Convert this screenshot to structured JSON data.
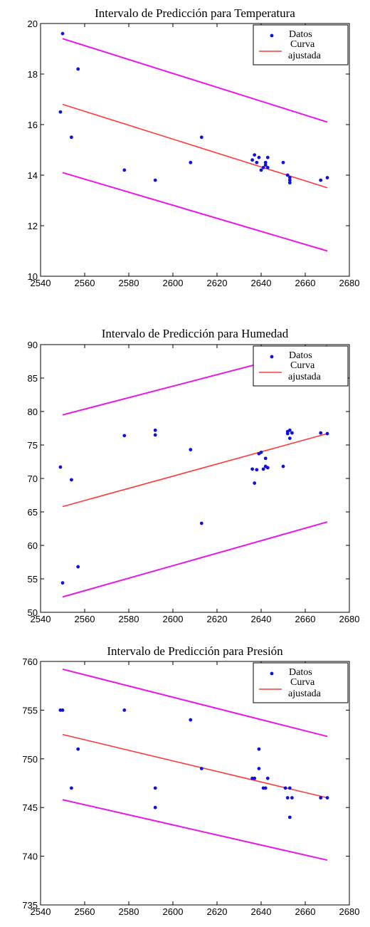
{
  "chart_data": [
    {
      "type": "scatter",
      "title": "Intervalo de Predicción para Temperatura",
      "xlim": [
        2540,
        2680
      ],
      "ylim": [
        10,
        20
      ],
      "xticks": [
        2540,
        2560,
        2580,
        2600,
        2620,
        2640,
        2660,
        2680
      ],
      "yticks": [
        10,
        12,
        14,
        16,
        18,
        20
      ],
      "legend": {
        "position": "top-right",
        "entries": [
          "Datos",
          "Curva ajustada"
        ]
      },
      "colors": {
        "datos": "#1010e0",
        "curva": "#ff3b3b",
        "intervalo": "#e818e8"
      },
      "series": [
        {
          "name": "Datos",
          "kind": "points",
          "x": [
            2549,
            2550,
            2554,
            2557,
            2578,
            2592,
            2608,
            2613,
            2636,
            2637,
            2638,
            2639,
            2640,
            2641,
            2642,
            2642,
            2643,
            2643,
            2650,
            2652,
            2653,
            2653,
            2653,
            2667,
            2670
          ],
          "y": [
            16.5,
            19.6,
            15.5,
            18.2,
            14.2,
            13.8,
            14.5,
            15.5,
            14.6,
            14.8,
            14.5,
            14.7,
            14.2,
            14.3,
            14.4,
            14.5,
            14.7,
            14.3,
            14.5,
            14.0,
            13.7,
            13.9,
            13.8,
            13.8,
            13.9
          ]
        },
        {
          "name": "Curva ajustada",
          "kind": "line",
          "x": [
            2550,
            2670
          ],
          "y": [
            16.8,
            13.5
          ]
        },
        {
          "kind": "line",
          "role": "upper",
          "x": [
            2550,
            2670
          ],
          "y": [
            19.4,
            16.1
          ]
        },
        {
          "kind": "line",
          "role": "lower",
          "x": [
            2550,
            2670
          ],
          "y": [
            14.1,
            11.0
          ]
        }
      ]
    },
    {
      "type": "scatter",
      "title": "Intervalo de Predicción para Humedad",
      "xlim": [
        2540,
        2680
      ],
      "ylim": [
        50,
        90
      ],
      "xticks": [
        2540,
        2560,
        2580,
        2600,
        2620,
        2640,
        2660,
        2680
      ],
      "yticks": [
        50,
        55,
        60,
        65,
        70,
        75,
        80,
        85,
        90
      ],
      "legend": {
        "position": "top-right",
        "entries": [
          "Datos",
          "Curva ajustada"
        ]
      },
      "colors": {
        "datos": "#1010e0",
        "curva": "#ff3b3b",
        "intervalo": "#e818e8"
      },
      "series": [
        {
          "name": "Datos",
          "kind": "points",
          "x": [
            2549,
            2550,
            2554,
            2557,
            2578,
            2592,
            2592,
            2608,
            2613,
            2636,
            2637,
            2638,
            2639,
            2640,
            2641,
            2642,
            2642,
            2643,
            2650,
            2652,
            2652,
            2653,
            2653,
            2654,
            2667,
            2670
          ],
          "y": [
            71.7,
            54.4,
            69.8,
            56.8,
            76.4,
            77.2,
            76.5,
            74.3,
            63.3,
            71.4,
            69.3,
            71.3,
            73.7,
            73.9,
            71.4,
            73.0,
            71.8,
            71.6,
            71.8,
            77.0,
            76.7,
            76.0,
            77.2,
            76.8,
            76.8,
            76.7
          ]
        },
        {
          "name": "Curva ajustada",
          "kind": "line",
          "x": [
            2550,
            2670
          ],
          "y": [
            65.8,
            76.7
          ]
        },
        {
          "kind": "line",
          "role": "upper",
          "x": [
            2550,
            2670
          ],
          "y": [
            79.5,
            89.8
          ]
        },
        {
          "kind": "line",
          "role": "lower",
          "x": [
            2550,
            2670
          ],
          "y": [
            52.3,
            63.5
          ]
        }
      ]
    },
    {
      "type": "scatter",
      "title": "Intervalo de Predicción para Presión",
      "xlim": [
        2540,
        2680
      ],
      "ylim": [
        735,
        760
      ],
      "xticks": [
        2540,
        2560,
        2580,
        2600,
        2620,
        2640,
        2660,
        2680
      ],
      "yticks": [
        735,
        740,
        745,
        750,
        755,
        760
      ],
      "legend": {
        "position": "top-right",
        "entries": [
          "Datos",
          "Curva ajustada"
        ]
      },
      "colors": {
        "datos": "#1010e0",
        "curva": "#ff3b3b",
        "intervalo": "#e818e8"
      },
      "series": [
        {
          "name": "Datos",
          "kind": "points",
          "x": [
            2549,
            2550,
            2554,
            2557,
            2578,
            2592,
            2592,
            2608,
            2613,
            2636,
            2637,
            2639,
            2639,
            2641,
            2642,
            2643,
            2651,
            2652,
            2653,
            2653,
            2654,
            2667,
            2670
          ],
          "y": [
            755,
            755,
            747,
            751,
            755,
            747,
            745,
            754,
            749,
            748,
            748,
            751,
            749,
            747,
            747,
            748,
            747,
            746,
            747,
            744,
            746,
            746,
            746
          ]
        },
        {
          "name": "Curva ajustada",
          "kind": "line",
          "x": [
            2550,
            2670
          ],
          "y": [
            752.5,
            746.0
          ]
        },
        {
          "kind": "line",
          "role": "upper",
          "x": [
            2550,
            2670
          ],
          "y": [
            759.2,
            752.3
          ]
        },
        {
          "kind": "line",
          "role": "lower",
          "x": [
            2550,
            2670
          ],
          "y": [
            745.8,
            739.6
          ]
        }
      ]
    }
  ]
}
